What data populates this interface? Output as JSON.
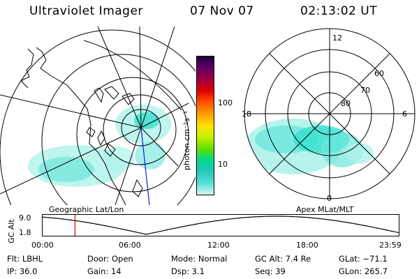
{
  "header": {
    "instrument": "Ultraviolet Imager",
    "date": "07 Nov 07",
    "time": "02:13:02 UT"
  },
  "colors": {
    "aurora": "#36e0d0",
    "aurora_light": "#aef2ea",
    "marker_red": "#cc0000",
    "line_blue": "#1020d0",
    "colorbar": [
      "#d8f4f0",
      "#5ce0d8",
      "#22c8b8",
      "#00d890",
      "#5fe000",
      "#c8f000",
      "#ffe000",
      "#ffa000",
      "#ff5000",
      "#e00000",
      "#a00040",
      "#600060",
      "#200040"
    ]
  },
  "colorbar": {
    "title": "photon cm⁻²s⁻¹",
    "ticks": [
      "100",
      "10"
    ]
  },
  "left_panel": {
    "caption": "Geographic Lat/Lon"
  },
  "right_panel": {
    "caption": "Apex MLat/MLT",
    "mlt_labels": {
      "top": "12",
      "left": "18",
      "right": "6",
      "bottom": "0"
    },
    "lat_labels": [
      "80",
      "70",
      "60"
    ]
  },
  "timeline": {
    "ylabel": "GC Alt",
    "yticks": [
      "9.0",
      "1.8"
    ],
    "xticks": [
      "00:00",
      "06:00",
      "12:00",
      "18:00",
      "23:59"
    ],
    "marker_time_hours": 2.2,
    "orbit_period_hours": 17.5
  },
  "info": {
    "flt": "Flt: LBHL",
    "door": "Door: Open",
    "mode": "Mode: Normal",
    "gc_alt": "GC Alt: 7.4 Re",
    "glat": "GLat: −71.1",
    "ip": "IP: 36.0",
    "gain": "Gain: 14",
    "dsp": "Dsp:    3.1",
    "seq": "Seq: 39",
    "glon": "GLon: 265.7"
  }
}
